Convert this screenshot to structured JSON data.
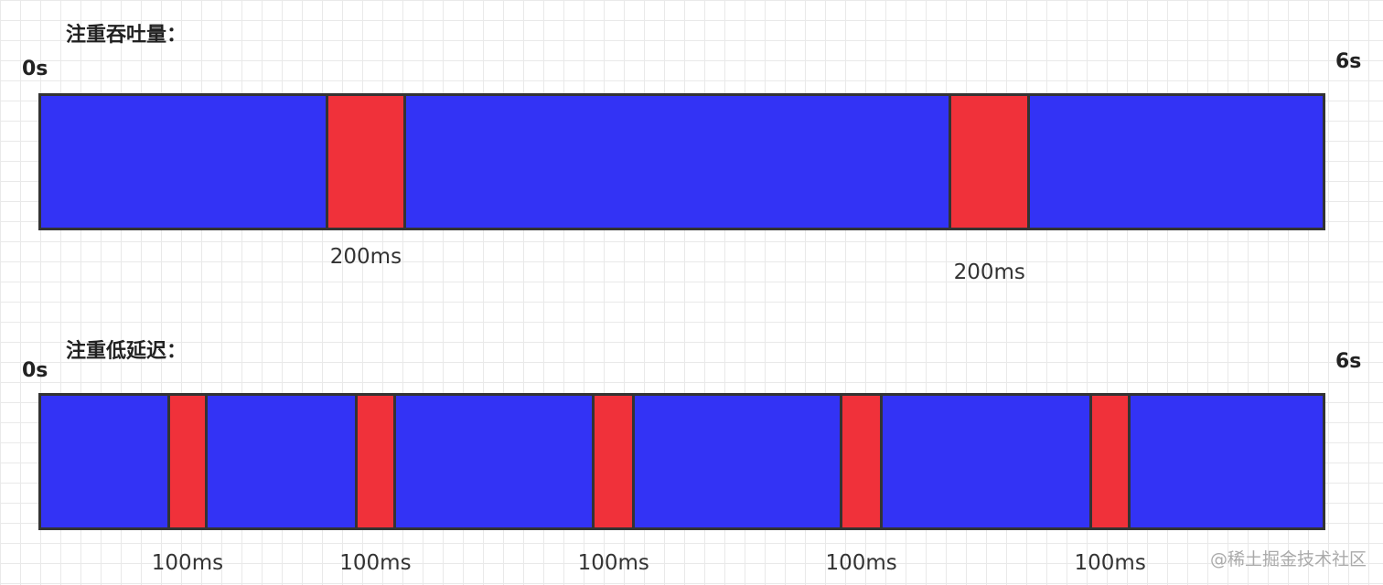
{
  "timelines": [
    {
      "title": "注重吞吐量：",
      "start_label": "0s",
      "end_label": "6s",
      "duration": 6,
      "pauses": [
        {
          "start": 1.33,
          "end": 1.71,
          "label": "200ms"
        },
        {
          "start": 4.25,
          "end": 4.63,
          "label": "200ms"
        }
      ],
      "colors": {
        "running": "#3333f5",
        "pause": "#f0313a"
      }
    },
    {
      "title": "注重低延迟：",
      "start_label": "0s",
      "end_label": "6s",
      "duration": 6,
      "pauses": [
        {
          "start": 0.59,
          "end": 0.78,
          "label": "100ms"
        },
        {
          "start": 1.47,
          "end": 1.66,
          "label": "100ms"
        },
        {
          "start": 2.58,
          "end": 2.78,
          "label": "100ms"
        },
        {
          "start": 3.74,
          "end": 3.94,
          "label": "100ms"
        },
        {
          "start": 4.91,
          "end": 5.1,
          "label": "100ms"
        }
      ],
      "colors": {
        "running": "#3333f5",
        "pause": "#f0313a"
      }
    }
  ],
  "watermark": "@稀土掘金技术社区"
}
